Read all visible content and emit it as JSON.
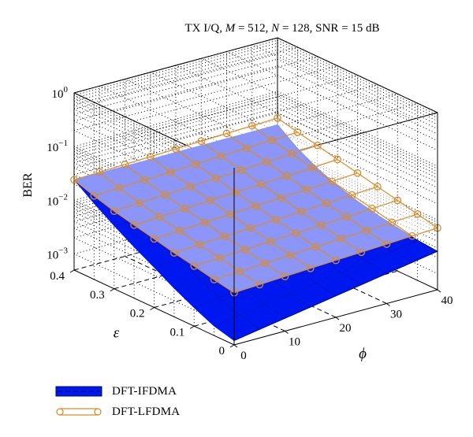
{
  "chart_data": {
    "type": "surface3d",
    "title": "TX I/Q, M = 512, N = 128, SNR = 15 dB",
    "title_parts": {
      "prefix": "TX I/Q, ",
      "m_symbol": "M",
      "m_value": " = 512, ",
      "n_symbol": "N",
      "n_value": " = 128, SNR = 15 dB"
    },
    "x_axis": {
      "label": "ϕ",
      "range": [
        0,
        40
      ],
      "ticks": [
        "0",
        "10",
        "20",
        "30",
        "40"
      ],
      "tick_values": [
        0,
        10,
        20,
        30,
        40
      ]
    },
    "y_axis": {
      "label": "ε",
      "range": [
        0,
        0.4
      ],
      "ticks": [
        "0",
        "0.1",
        "0.2",
        "0.3",
        "0.4"
      ],
      "tick_values": [
        0,
        0.1,
        0.2,
        0.3,
        0.4
      ]
    },
    "z_axis": {
      "label": "BER",
      "scale": "log",
      "range": [
        0.0005,
        1
      ],
      "ticks": [
        {
          "base": "10",
          "exp": "0",
          "value": 1
        },
        {
          "base": "10",
          "exp": "−1",
          "value": 0.1
        },
        {
          "base": "10",
          "exp": "−2",
          "value": 0.01
        },
        {
          "base": "10",
          "exp": "−3",
          "value": 0.001
        }
      ]
    },
    "phi_grid": [
      0,
      5,
      10,
      15,
      20,
      25,
      30,
      35,
      40
    ],
    "eps_grid": [
      0,
      0.05,
      0.1,
      0.15,
      0.2,
      0.25,
      0.3,
      0.35,
      0.4
    ],
    "series": [
      {
        "name": "DFT-IFDMA",
        "style": "surface",
        "color": "#0018f0",
        "ber_phi0": [
          0.0006,
          0.00075,
          0.0011,
          0.0017,
          0.0028,
          0.0045,
          0.0075,
          0.013,
          0.024
        ],
        "ber_phi40": [
          0.0026,
          0.0028,
          0.0032,
          0.0037,
          0.0045,
          0.0058,
          0.0082,
          0.013,
          0.024
        ]
      },
      {
        "name": "DFT-LFDMA",
        "style": "mesh-markers",
        "color": "#d98c2b",
        "ber_phi0": [
          0.0047,
          0.0055,
          0.0066,
          0.0078,
          0.0095,
          0.0115,
          0.014,
          0.018,
          0.024
        ],
        "ber_phi40": [
          0.0071,
          0.0086,
          0.0104,
          0.0125,
          0.015,
          0.018,
          0.022,
          0.026,
          0.032
        ]
      }
    ],
    "grid": true,
    "legend": "bottom-left"
  }
}
